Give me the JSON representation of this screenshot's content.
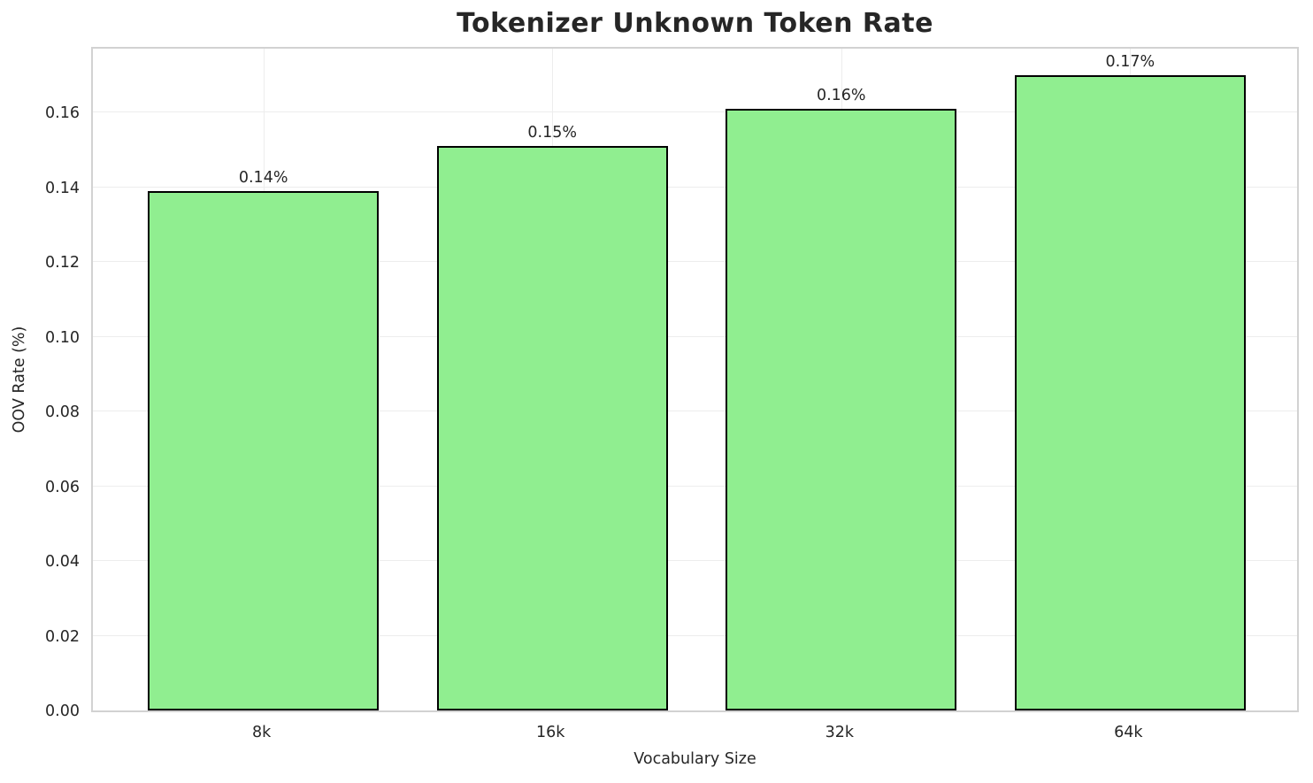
{
  "chart_data": {
    "type": "bar",
    "title": "Tokenizer Unknown Token Rate",
    "xlabel": "Vocabulary Size",
    "ylabel": "OOV Rate (%)",
    "categories": [
      "8k",
      "16k",
      "32k",
      "64k"
    ],
    "values": [
      0.139,
      0.151,
      0.161,
      0.17
    ],
    "bar_labels": [
      "0.14%",
      "0.15%",
      "0.16%",
      "0.17%"
    ],
    "ytick_labels": [
      "0.00",
      "0.02",
      "0.04",
      "0.06",
      "0.08",
      "0.10",
      "0.12",
      "0.14",
      "0.16"
    ],
    "yticks": [
      0.0,
      0.02,
      0.04,
      0.06,
      0.08,
      0.1,
      0.12,
      0.14,
      0.16
    ],
    "ylim": [
      0,
      0.178
    ],
    "xlim": [
      -0.59,
      3.59
    ],
    "bar_width": 0.8,
    "grid": true,
    "legend": "none",
    "bar_color": "#90EE90",
    "bar_edge_color": "#000000",
    "grid_color": "#ededed",
    "spine_color": "#d2d2d2",
    "text_color": "#262626"
  }
}
